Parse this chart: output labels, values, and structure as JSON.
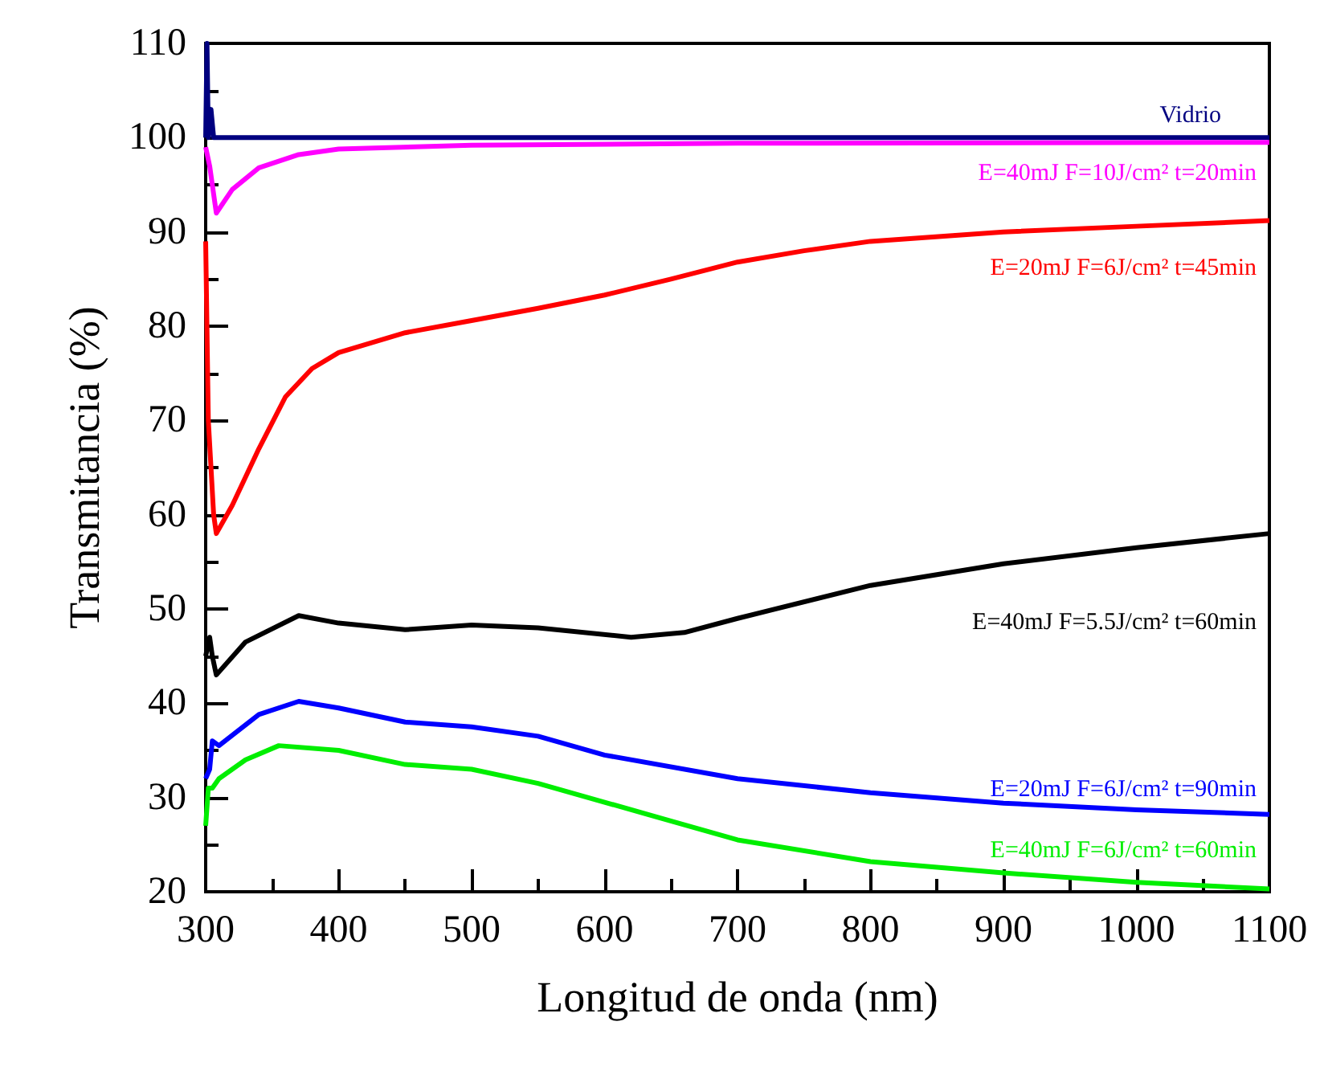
{
  "chart_data": {
    "type": "line",
    "xlabel": "Longitud de onda (nm)",
    "ylabel": "Transmitancia (%)",
    "xlim": [
      300,
      1100
    ],
    "ylim": [
      20,
      110
    ],
    "xticks": [
      300,
      400,
      500,
      600,
      700,
      800,
      900,
      1000,
      1100
    ],
    "yticks": [
      20,
      30,
      40,
      50,
      60,
      70,
      80,
      90,
      100,
      110
    ],
    "grid": false,
    "legend": false,
    "marker": "none",
    "line_style": "solid",
    "series": [
      {
        "name": "Vidrio",
        "color": "#000080",
        "x": [
          300,
          301,
          302,
          304,
          306,
          310,
          1100
        ],
        "values": [
          100,
          110,
          100,
          103,
          100,
          100,
          100
        ]
      },
      {
        "name": "E=40mJ F=10J/cm² t=20min",
        "color": "#ff00ff",
        "x": [
          300,
          303,
          308,
          320,
          340,
          370,
          400,
          500,
          700,
          1100
        ],
        "values": [
          99,
          97,
          92,
          94.5,
          96.8,
          98.2,
          98.8,
          99.2,
          99.4,
          99.5
        ]
      },
      {
        "name": "E=20mJ F=6J/cm² t=45min",
        "color": "#ff0000",
        "x": [
          300,
          302,
          304,
          306,
          308,
          320,
          340,
          360,
          380,
          400,
          450,
          500,
          550,
          600,
          650,
          700,
          750,
          800,
          900,
          1000,
          1100
        ],
        "values": [
          89,
          70,
          65,
          60,
          58,
          61,
          67,
          72.5,
          75.5,
          77.2,
          79.3,
          80.6,
          81.9,
          83.3,
          85,
          86.8,
          88,
          89,
          90,
          90.6,
          91.2
        ]
      },
      {
        "name": "E=40mJ F=5.5J/cm² t=60min",
        "color": "#000000",
        "x": [
          300,
          303,
          305,
          308,
          330,
          370,
          400,
          450,
          500,
          550,
          620,
          660,
          700,
          800,
          900,
          1000,
          1100
        ],
        "values": [
          45,
          47,
          45,
          43,
          46.5,
          49.3,
          48.5,
          47.8,
          48.3,
          48,
          47,
          47.5,
          49,
          52.5,
          54.8,
          56.5,
          58
        ]
      },
      {
        "name": "E=20mJ F=6J/cm² t=90min",
        "color": "#0000ff",
        "x": [
          300,
          303,
          305,
          310,
          340,
          370,
          400,
          450,
          500,
          550,
          600,
          700,
          800,
          900,
          1000,
          1100
        ],
        "values": [
          32,
          33,
          36,
          35.5,
          38.8,
          40.2,
          39.5,
          38,
          37.5,
          36.5,
          34.5,
          32,
          30.5,
          29.4,
          28.7,
          28.2
        ]
      },
      {
        "name": "E=40mJ F=6J/cm² t=60min",
        "color": "#00ee00",
        "x": [
          300,
          302,
          305,
          310,
          330,
          355,
          400,
          450,
          500,
          550,
          600,
          700,
          800,
          900,
          1000,
          1100
        ],
        "values": [
          27,
          31,
          31,
          32,
          34,
          35.5,
          35,
          33.5,
          33,
          31.5,
          29.5,
          25.5,
          23.2,
          22,
          21,
          20.3
        ]
      }
    ]
  }
}
